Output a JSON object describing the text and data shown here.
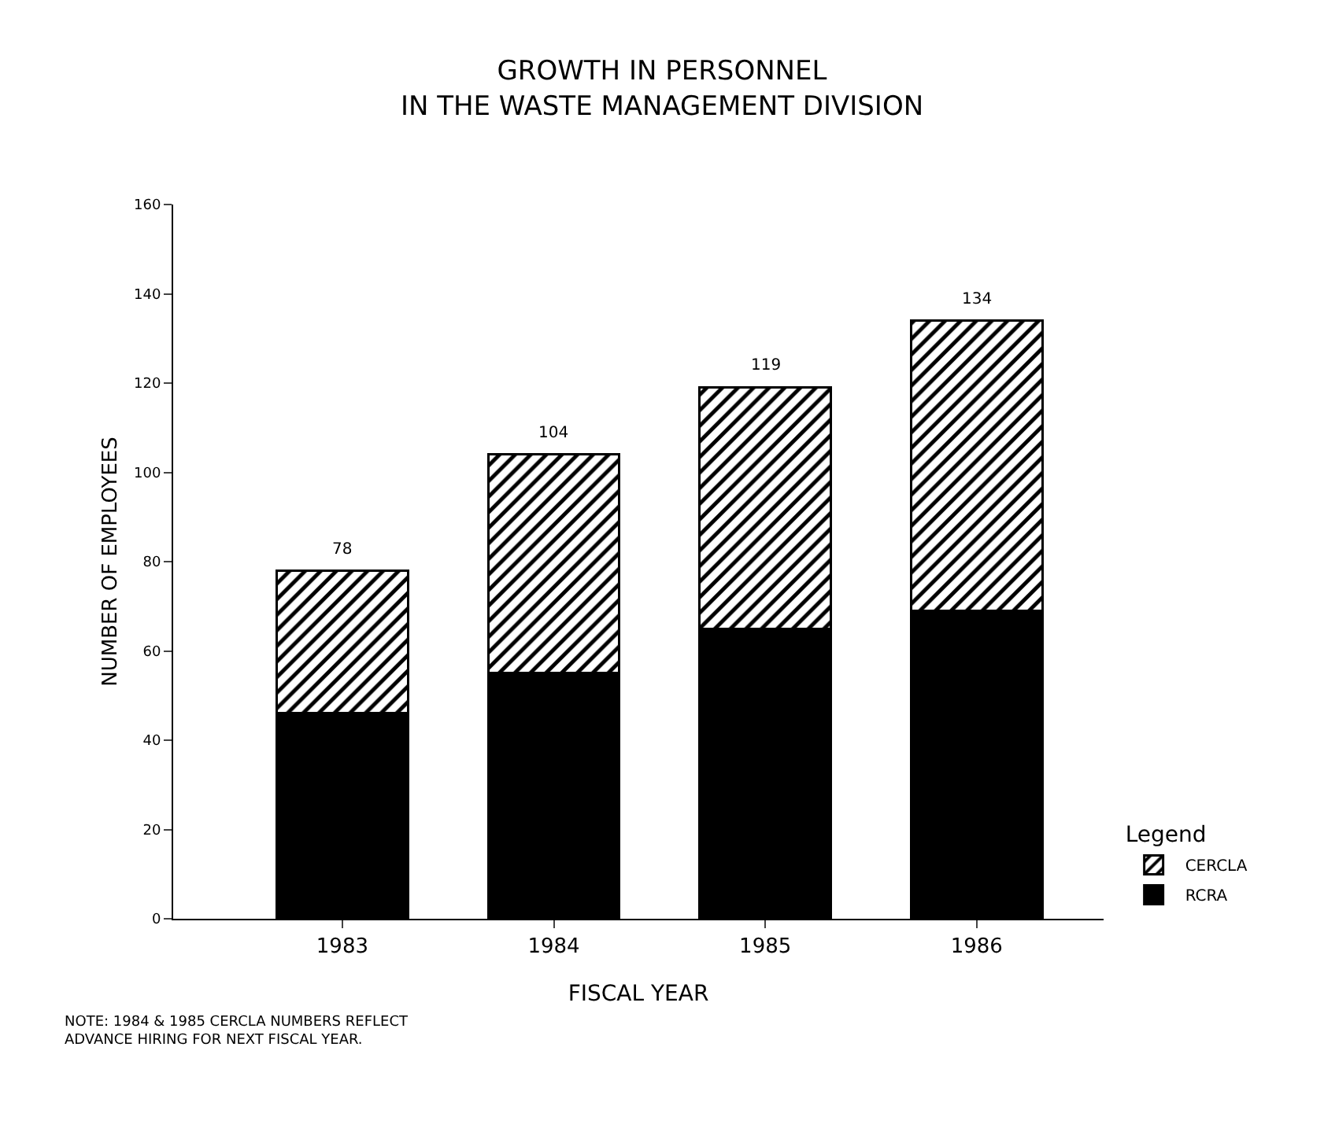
{
  "chart_data": {
    "type": "bar",
    "title": "GROWTH IN PERSONNEL\nIN THE WASTE MANAGEMENT DIVISION",
    "xlabel": "FISCAL YEAR",
    "ylabel": "NUMBER OF EMPLOYEES",
    "legend_title": "Legend",
    "categories": [
      "1983",
      "1984",
      "1985",
      "1986"
    ],
    "stacked": true,
    "series": [
      {
        "name": "RCRA",
        "color": "#000000",
        "values": [
          46,
          55,
          65,
          69
        ]
      },
      {
        "name": "CERCLA",
        "color": "#000000",
        "values": [
          32,
          49,
          54,
          65
        ]
      }
    ],
    "totals": [
      "78",
      "104",
      "119",
      "134"
    ],
    "ylim": [
      0,
      160
    ],
    "yticks": [
      0,
      20,
      40,
      60,
      80,
      100,
      120,
      140,
      160
    ],
    "grid": false,
    "legend": "bottom right",
    "annotations": [
      "NOTE: 1984 & 1985 CERCLA NUMBERS REFLECT\nADVANCE HIRING FOR NEXT FISCAL YEAR."
    ]
  }
}
